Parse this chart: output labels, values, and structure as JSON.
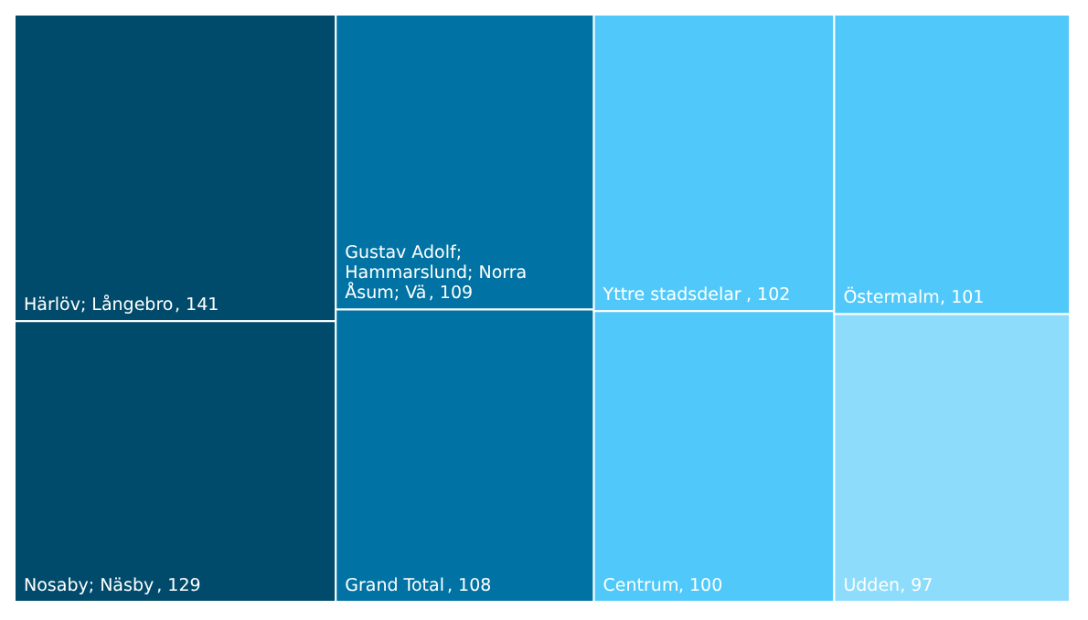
{
  "chart_data": {
    "type": "other",
    "categories": [
      "Härlöv; Långebro",
      "Nosaby; Näsby",
      "Gustav Adolf; Hammarslund; Norra Åsum; Vä",
      "Grand Total",
      "Yttre stadsdelar",
      "Centrum",
      "Östermalm",
      "Udden"
    ],
    "values": [
      141,
      129,
      109,
      108,
      102,
      100,
      101,
      97
    ],
    "value_labels": [
      ", 141",
      ", 129",
      ", 109",
      ", 108",
      ", 102",
      ", 100",
      ", 101",
      ", 97"
    ],
    "colors": [
      "#004b6b",
      "#004b6b",
      "#0072a3",
      "#0072a3",
      "#50c9fa",
      "#50c9fa",
      "#50c9fa",
      "#8ddcfb"
    ]
  }
}
